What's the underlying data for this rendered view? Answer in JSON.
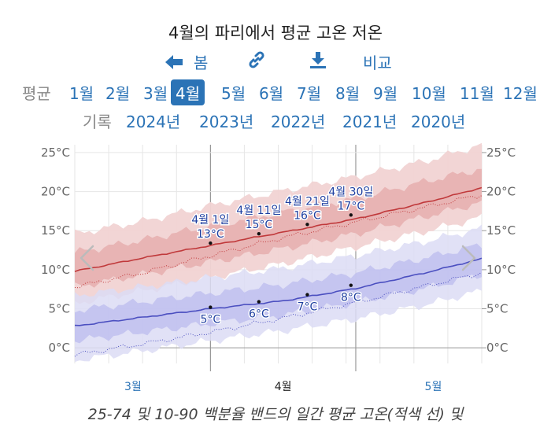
{
  "title": "4월의 파리에서 평균 고온 저온",
  "toolbar": {
    "prev_label": "봄",
    "compare_label": "비교"
  },
  "months_row": {
    "label": "평균",
    "items": [
      "1월",
      "2월",
      "3월",
      "4월",
      "5월",
      "6월",
      "7월",
      "8월",
      "9월",
      "10월",
      "11월",
      "12월"
    ],
    "active": "4월"
  },
  "years_row": {
    "label": "기록",
    "items": [
      "2024년",
      "2023년",
      "2022년",
      "2021년",
      "2020년"
    ]
  },
  "caption": "25-74 및 10-90 백분율 밴드의 일간 평균 고온(적색 선) 및",
  "colors": {
    "high_line": "#c0393b",
    "high_band_outer": "#f1d3d3",
    "high_band_inner": "#e7b0b0",
    "low_line": "#4b4fc0",
    "low_band_outer": "#dcdcf5",
    "low_band_inner": "#bfc0ee",
    "accent": "#2b73b6"
  },
  "chart_data": {
    "type": "area",
    "ylim": [
      -2,
      26
    ],
    "y_ticks": [
      0,
      5,
      10,
      15,
      20,
      25
    ],
    "y_tick_labels": [
      "0°C",
      "5°C",
      "10°C",
      "15°C",
      "20°C",
      "25°C"
    ],
    "x_day_range": [
      -28,
      56
    ],
    "x_month_labels": [
      {
        "label": "3월",
        "day": -16
      },
      {
        "label": "4월",
        "day": 15
      },
      {
        "label": "5월",
        "day": 46
      }
    ],
    "x_month_boundaries": [
      0,
      30
    ],
    "x_days": [
      -28,
      -14,
      0,
      15,
      30,
      45,
      56
    ],
    "series": [
      {
        "key": "high",
        "avg": [
          9.8,
          11.5,
          13.1,
          14.8,
          16.5,
          18.7,
          20.5
        ],
        "p25": [
          7.8,
          9.4,
          11.0,
          12.7,
          14.6,
          16.9,
          18.6
        ],
        "p75": [
          12.2,
          13.8,
          15.6,
          17.4,
          19.1,
          21.4,
          22.9
        ],
        "p10": [
          5.7,
          7.3,
          9.0,
          10.8,
          12.9,
          15.0,
          16.7
        ],
        "p90": [
          14.6,
          16.2,
          18.2,
          20.1,
          21.9,
          24.0,
          26.0
        ],
        "dotted": [
          7.8,
          9.6,
          11.8,
          14.1,
          16.1,
          18.1,
          19.6
        ]
      },
      {
        "key": "low",
        "avg": [
          2.8,
          3.9,
          5.0,
          6.0,
          7.6,
          9.7,
          11.4
        ],
        "p25": [
          0.9,
          2.0,
          3.1,
          4.2,
          5.8,
          7.7,
          9.4
        ],
        "p75": [
          4.8,
          5.9,
          7.0,
          8.1,
          9.6,
          11.6,
          13.2
        ],
        "p10": [
          -1.6,
          -0.4,
          0.9,
          2.2,
          3.7,
          5.6,
          7.3
        ],
        "p90": [
          6.7,
          7.8,
          9.0,
          10.2,
          11.8,
          13.7,
          15.3
        ],
        "dotted": [
          -0.9,
          0.5,
          2.0,
          3.8,
          5.8,
          8.0,
          9.6
        ]
      }
    ],
    "annotations": [
      {
        "date": "4월 1일",
        "high": "13°C",
        "low": "5°C",
        "day": 0,
        "high_val": 13.4,
        "low_val": 5.2
      },
      {
        "date": "4월 11일",
        "high": "15°C",
        "low": "6°C",
        "day": 10,
        "high_val": 14.6,
        "low_val": 5.9
      },
      {
        "date": "4월 21일",
        "high": "16°C",
        "low": "7°C",
        "day": 20,
        "high_val": 15.8,
        "low_val": 6.8
      },
      {
        "date": "4월 30일",
        "high": "17°C",
        "low": "8°C",
        "day": 29,
        "high_val": 17.0,
        "low_val": 8.0
      }
    ]
  }
}
